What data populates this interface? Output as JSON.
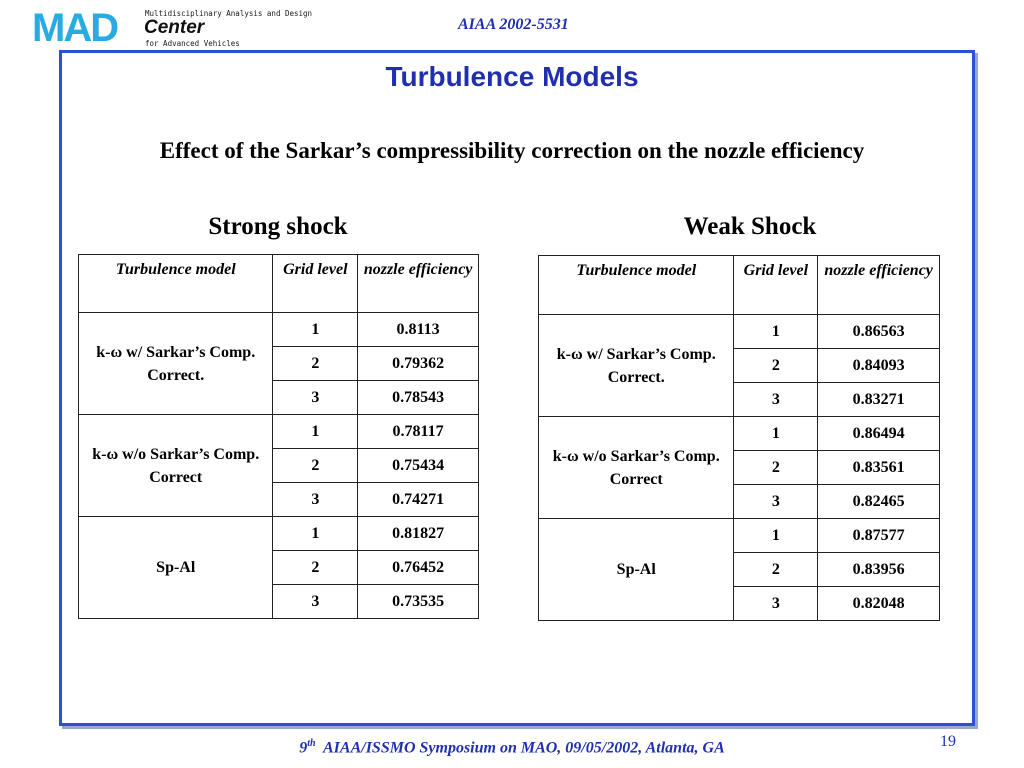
{
  "header": {
    "logo_mad": "MAD",
    "logo_line1": "Multidisciplinary Analysis and Design",
    "logo_center": "Center",
    "logo_line3": "for Advanced Vehicles",
    "paper_id": "AIAA 2002-5531"
  },
  "slide": {
    "title": "Turbulence Models",
    "subtitle": "Effect of the Sarkar’s compressibility correction on the nozzle efficiency"
  },
  "strong": {
    "title": "Strong shock",
    "headers": {
      "model": "Turbulence model",
      "grid": "Grid level",
      "eff": "nozzle efficiency"
    },
    "groups": [
      {
        "model": "k-ω w/ Sarkar’s Comp. Correct.",
        "rows": [
          {
            "grid": "1",
            "eff": "0.8113"
          },
          {
            "grid": "2",
            "eff": "0.79362"
          },
          {
            "grid": "3",
            "eff": "0.78543"
          }
        ]
      },
      {
        "model": "k-ω w/o Sarkar’s Comp. Correct",
        "rows": [
          {
            "grid": "1",
            "eff": "0.78117"
          },
          {
            "grid": "2",
            "eff": "0.75434"
          },
          {
            "grid": "3",
            "eff": "0.74271"
          }
        ]
      },
      {
        "model": "Sp-Al",
        "rows": [
          {
            "grid": "1",
            "eff": "0.81827"
          },
          {
            "grid": "2",
            "eff": "0.76452"
          },
          {
            "grid": "3",
            "eff": "0.73535"
          }
        ]
      }
    ]
  },
  "weak": {
    "title": "Weak Shock",
    "headers": {
      "model": "Turbulence model",
      "grid": "Grid level",
      "eff": "nozzle efficiency"
    },
    "groups": [
      {
        "model": "k-ω w/ Sarkar’s Comp. Correct.",
        "rows": [
          {
            "grid": "1",
            "eff": "0.86563"
          },
          {
            "grid": "2",
            "eff": "0.84093"
          },
          {
            "grid": "3",
            "eff": "0.83271"
          }
        ]
      },
      {
        "model": "k-ω w/o Sarkar’s Comp. Correct",
        "rows": [
          {
            "grid": "1",
            "eff": "0.86494"
          },
          {
            "grid": "2",
            "eff": "0.83561"
          },
          {
            "grid": "3",
            "eff": "0.82465"
          }
        ]
      },
      {
        "model": "Sp-Al",
        "rows": [
          {
            "grid": "1",
            "eff": "0.87577"
          },
          {
            "grid": "2",
            "eff": "0.83956"
          },
          {
            "grid": "3",
            "eff": "0.82048"
          }
        ]
      }
    ]
  },
  "footer": {
    "ordinal": "9",
    "ordinal_suffix": "th",
    "text": "AIAA/ISSMO Symposium on MAO, 09/05/2002, Atlanta, GA",
    "page_number": "19"
  },
  "colors": {
    "accent": "#1f2fb0",
    "frame": "#2b50d1",
    "logo": "#29abe2"
  }
}
